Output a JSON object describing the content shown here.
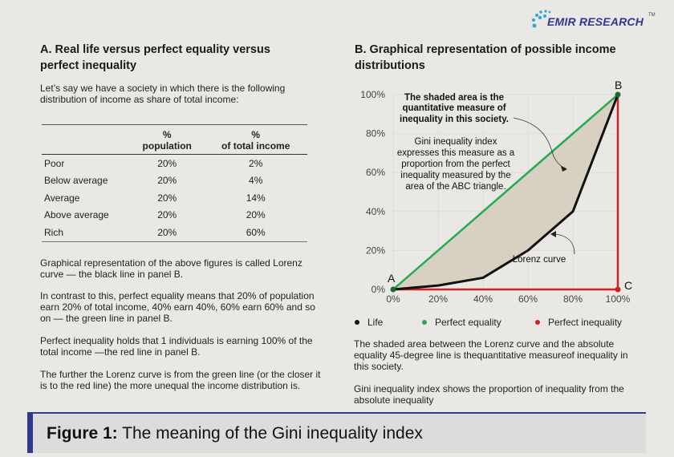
{
  "logo": {
    "text": "EMIR RESEARCH",
    "tm": "TM",
    "color": "#2b3990"
  },
  "left": {
    "heading": "A. Real life versus perfect equality versus perfect inequality",
    "intro": "Let’s say we have a society in which there is the following distribution of income as share of total income:",
    "table": {
      "headers": [
        [
          "",
          ""
        ],
        [
          "%",
          "population"
        ],
        [
          "%",
          "of total income"
        ]
      ],
      "rows": [
        [
          "Poor",
          "20%",
          "2%"
        ],
        [
          "Below average",
          "20%",
          "4%"
        ],
        [
          "Average",
          "20%",
          "14%"
        ],
        [
          "Above average",
          "20%",
          "20%"
        ],
        [
          "Rich",
          "20%",
          "60%"
        ]
      ]
    },
    "paragraphs": [
      "Graphical representation of the above figures is called Lorenz curve — the black line in panel B.",
      "In contrast to this, perfect equality means that 20% of population earn 20% of total income, 40% earn 40%, 60% earn 60% and so on — the green line in panel B.",
      "Perfect inequality holds that 1 individuals is earning 100% of the total income —the red line in panel B.",
      "The further the Lorenz curve is from the green line (or the closer it is to the red line) the more unequal the income distribution is."
    ]
  },
  "right": {
    "heading": "B. Graphical representation of possible income distributions",
    "paragraphs": [
      "The shaded area between the Lorenz curve and the absolute equality 45-degree line is thequantitative measureof inequality in this society.",
      "Gini inequality index shows the proportion of inequality from the absolute inequality"
    ]
  },
  "chart_data": {
    "type": "line",
    "x": [
      0,
      20,
      40,
      60,
      80,
      100
    ],
    "xlim": [
      0,
      100
    ],
    "ylim": [
      0,
      100
    ],
    "x_ticks": [
      "0%",
      "20%",
      "40%",
      "60%",
      "80%",
      "100%"
    ],
    "y_ticks": [
      "0%",
      "20%",
      "40%",
      "60%",
      "80%",
      "100%"
    ],
    "grid": true,
    "series": [
      {
        "name": "Life",
        "color": "#111111",
        "x": [
          0,
          20,
          40,
          60,
          80,
          100
        ],
        "y": [
          0,
          2,
          6,
          20,
          40,
          100
        ]
      },
      {
        "name": "Perfect equality",
        "color": "#1fae4b",
        "x": [
          0,
          100
        ],
        "y": [
          0,
          100
        ]
      },
      {
        "name": "Perfect inequality",
        "color": "#d21f26",
        "x": [
          0,
          100,
          100
        ],
        "y": [
          0,
          0,
          100
        ]
      }
    ],
    "shaded_area_color": "#d8d0c0",
    "point_labels": [
      "A",
      "B",
      "C"
    ],
    "annotations": {
      "shaded": [
        "The shaded area is the",
        "quantitative measure of",
        "inequality in this society."
      ],
      "gini": [
        "Gini inequality index",
        "expresses this measure as a",
        "proportion from the perfect",
        "inequality measured by the",
        "area of the ABC triangle."
      ],
      "lorenz": "Lorenz curve"
    },
    "legend_placement": "bottom"
  },
  "caption": {
    "bold": "Figure 1:",
    "text": " The meaning of the Gini inequality index",
    "accent": "#2e3a8c"
  }
}
